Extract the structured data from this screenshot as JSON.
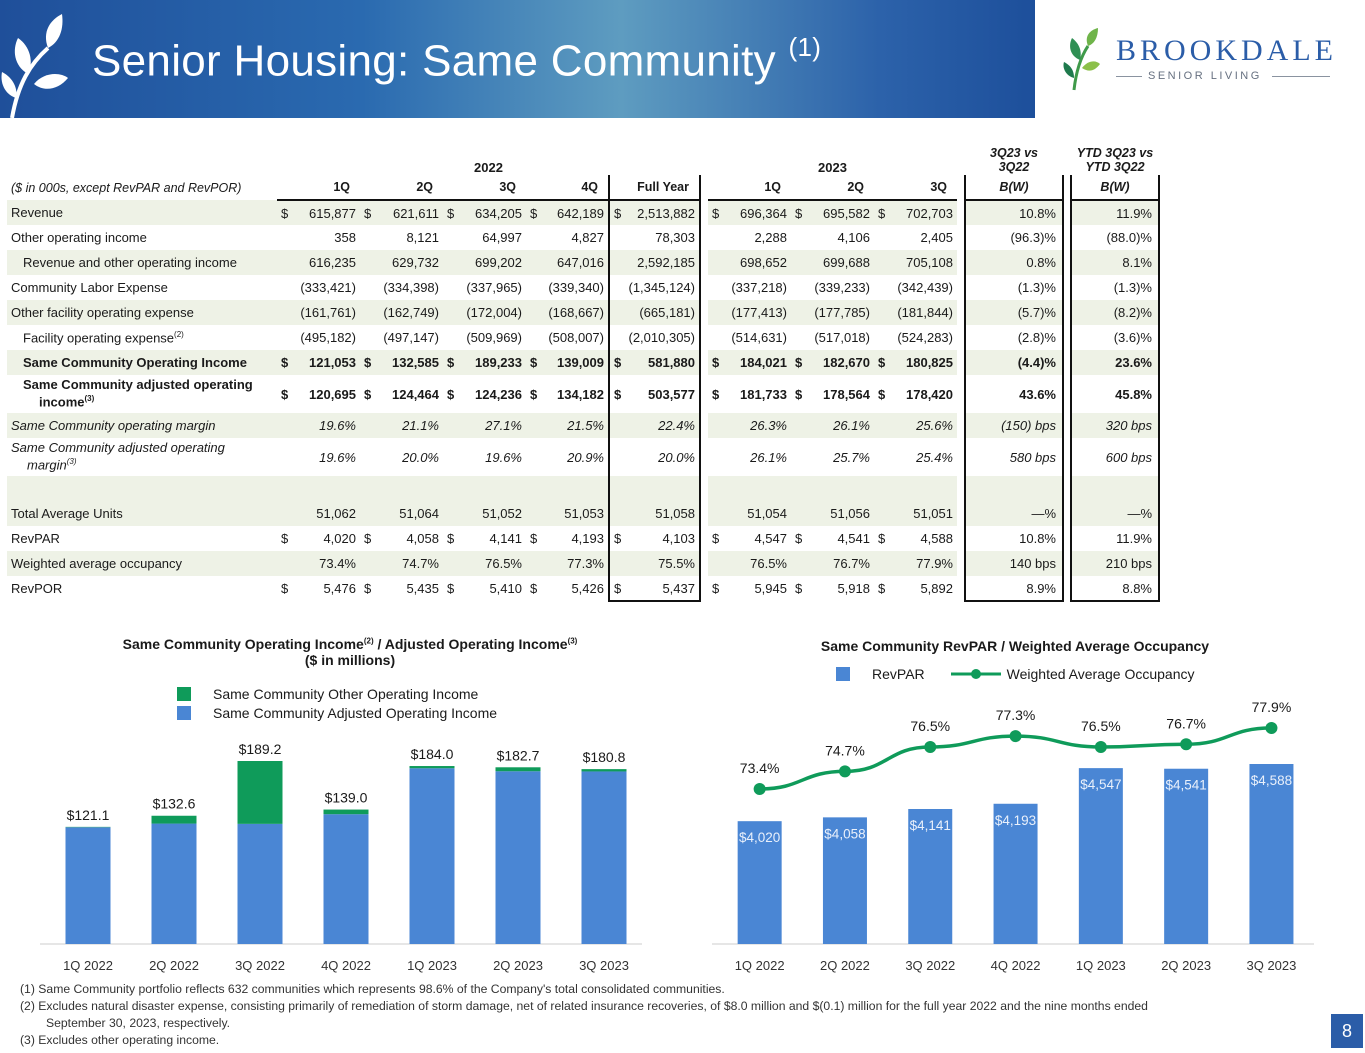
{
  "header": {
    "title": "Senior Housing: Same Community",
    "title_footnote": "(1)",
    "logo_word": "BROOKDALE",
    "logo_sub": "SENIOR LIVING"
  },
  "table": {
    "year_2022": "2022",
    "year_2023": "2023",
    "col_q_vs_a": "3Q23 vs",
    "col_q_vs_b": "3Q22",
    "col_ytd_a": "YTD 3Q23 vs",
    "col_ytd_b": "YTD 3Q22",
    "units_note": "($ in 000s, except RevPAR and RevPOR)",
    "headers": [
      "1Q",
      "2Q",
      "3Q",
      "4Q",
      "Full Year",
      "1Q",
      "2Q",
      "3Q",
      "B(W)",
      "B(W)"
    ],
    "rows": [
      {
        "label": "Revenue",
        "d": true,
        "cells": [
          "615,877",
          "621,611",
          "634,205",
          "642,189",
          "2,513,882",
          "696,364",
          "695,582",
          "702,703",
          "10.8%",
          "11.9%"
        ]
      },
      {
        "label": "Other operating income",
        "cells": [
          "358",
          "8,121",
          "64,997",
          "4,827",
          "78,303",
          "2,288",
          "4,106",
          "2,405",
          "(96.3)%",
          "(88.0)%"
        ]
      },
      {
        "label": "Revenue and other operating income",
        "cells": [
          "616,235",
          "629,732",
          "699,202",
          "647,016",
          "2,592,185",
          "698,652",
          "699,688",
          "705,108",
          "0.8%",
          "8.1%"
        ]
      },
      {
        "label": "Community Labor Expense",
        "cells": [
          "(333,421)",
          "(334,398)",
          "(337,965)",
          "(339,340)",
          "(1,345,124)",
          "(337,218)",
          "(339,233)",
          "(342,439)",
          "(1.3)%",
          "(1.3)%"
        ]
      },
      {
        "label": "Other facility operating expense",
        "cells": [
          "(161,761)",
          "(162,749)",
          "(172,004)",
          "(168,667)",
          "(665,181)",
          "(177,413)",
          "(177,785)",
          "(181,844)",
          "(5.7)%",
          "(8.2)%"
        ]
      },
      {
        "label": "Facility operating expense",
        "fn": "(2)",
        "cells": [
          "(495,182)",
          "(497,147)",
          "(509,969)",
          "(508,007)",
          "(2,010,305)",
          "(514,631)",
          "(517,018)",
          "(524,283)",
          "(2.8)%",
          "(3.6)%"
        ]
      },
      {
        "label": "Same Community Operating Income",
        "d": true,
        "cells": [
          "121,053",
          "132,585",
          "189,233",
          "139,009",
          "581,880",
          "184,021",
          "182,670",
          "180,825",
          "(4.4)%",
          "23.6%"
        ]
      },
      {
        "label_1": "Same Community adjusted operating",
        "label_2": "income",
        "fn": "(3)",
        "d": true,
        "cells": [
          "120,695",
          "124,464",
          "124,236",
          "134,182",
          "503,577",
          "181,733",
          "178,564",
          "178,420",
          "43.6%",
          "45.8%"
        ]
      },
      {
        "label": "Same Community operating margin",
        "cells": [
          "19.6%",
          "21.1%",
          "27.1%",
          "21.5%",
          "22.4%",
          "26.3%",
          "26.1%",
          "25.6%",
          "(150) bps",
          "320 bps"
        ]
      },
      {
        "label_1": "Same Community adjusted operating",
        "label_2": "margin",
        "fn": "(3)",
        "cells": [
          "19.6%",
          "20.0%",
          "19.6%",
          "20.9%",
          "20.0%",
          "26.1%",
          "25.7%",
          "25.4%",
          "580 bps",
          "600 bps"
        ]
      },
      {
        "label": "Total Average Units",
        "cells": [
          "51,062",
          "51,064",
          "51,052",
          "51,053",
          "51,058",
          "51,054",
          "51,056",
          "51,051",
          "—%",
          "—%"
        ]
      },
      {
        "label": "RevPAR",
        "d": true,
        "cells": [
          "4,020",
          "4,058",
          "4,141",
          "4,193",
          "4,103",
          "4,547",
          "4,541",
          "4,588",
          "10.8%",
          "11.9%"
        ]
      },
      {
        "label": "Weighted average occupancy",
        "cells": [
          "73.4%",
          "74.7%",
          "76.5%",
          "77.3%",
          "75.5%",
          "76.5%",
          "76.7%",
          "77.9%",
          "140 bps",
          "210 bps"
        ]
      },
      {
        "label": "RevPOR",
        "d": true,
        "cells": [
          "5,476",
          "5,435",
          "5,410",
          "5,426",
          "5,437",
          "5,945",
          "5,918",
          "5,892",
          "8.9%",
          "8.8%"
        ]
      }
    ]
  },
  "chart_data": [
    {
      "type": "bar",
      "title_line1_a": "Same Community Operating  Income",
      "title_fn_a": "(2)",
      "title_line1_sep": " /   Adjusted Operating Income",
      "title_fn_b": "(3)",
      "title_line2": "($ in millions)",
      "categories": [
        "1Q 2022",
        "2Q 2022",
        "3Q 2022",
        "4Q 2022",
        "1Q 2023",
        "2Q 2023",
        "3Q 2023"
      ],
      "series": [
        {
          "name": "Same Community Adjusted Operating Income",
          "color": "#4a86d4",
          "values": [
            120.7,
            124.5,
            124.2,
            134.2,
            181.7,
            178.6,
            178.4
          ]
        },
        {
          "name": "Same Community Other Operating Income",
          "color": "#0f9b5a",
          "values": [
            0.4,
            8.1,
            65.0,
            4.8,
            2.3,
            4.1,
            2.4
          ]
        }
      ],
      "total_labels": [
        "$121.1",
        "$132.6",
        "$189.2",
        "$139.0",
        "$184.0",
        "$182.7",
        "$180.8"
      ],
      "ylim": [
        0,
        200
      ]
    },
    {
      "type": "bar",
      "title": "Same Community RevPAR / Weighted Average Occupancy",
      "categories": [
        "1Q 2022",
        "2Q 2022",
        "3Q 2022",
        "4Q 2022",
        "1Q 2023",
        "2Q 2023",
        "3Q 2023"
      ],
      "series": [
        {
          "name": "RevPAR",
          "color": "#4a86d4",
          "values": [
            4020,
            4058,
            4141,
            4193,
            4547,
            4541,
            4588
          ],
          "labels": [
            "$4,020",
            "$4,058",
            "$4,141",
            "$4,193",
            "$4,547",
            "$4,541",
            "$4,588"
          ]
        },
        {
          "name": "Weighted Average Occupancy",
          "color": "#0f9b5a",
          "type": "line",
          "values": [
            73.4,
            74.7,
            76.5,
            77.3,
            76.5,
            76.7,
            77.9
          ],
          "labels": [
            "73.4%",
            "74.7%",
            "76.5%",
            "77.3%",
            "76.5%",
            "76.7%",
            "77.9%"
          ]
        }
      ]
    }
  ],
  "footnotes": {
    "f1": "(1) Same Community portfolio reflects 632 communities which represents 98.6% of the Company's total consolidated communities.",
    "f2a": "(2) Excludes natural disaster expense, consisting primarily of remediation of storm damage, net of related insurance recoveries, of $8.0 million and $(0.1) million for the full year 2022 and the nine months ended",
    "f2b": "September 30, 2023, respectively.",
    "f3": "(3) Excludes other operating income."
  },
  "page_number": "8"
}
